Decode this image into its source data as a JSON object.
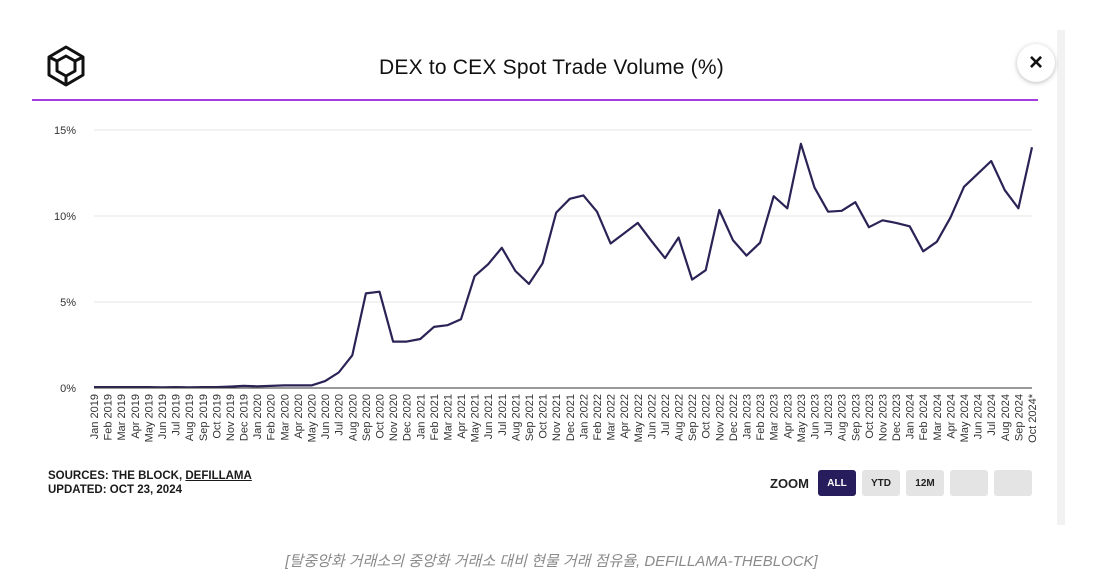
{
  "title": "DEX to CEX Spot Trade Volume (%)",
  "close_icon": "×",
  "colors": {
    "accent": "#a23be0",
    "line": "#2b2356",
    "zoom_active": "#271d5c"
  },
  "sources": {
    "label": "SOURCES: THE BLOCK, ",
    "link": "DEFILLAMA",
    "updated": "UPDATED: OCT 23, 2024"
  },
  "zoom": {
    "label": "ZOOM",
    "buttons": [
      {
        "label": "ALL",
        "active": true
      },
      {
        "label": "YTD",
        "active": false
      },
      {
        "label": "12M",
        "active": false
      }
    ]
  },
  "caption": "[탈중앙화 거래소의 중앙화 거래소 대비 현물 거래 점유율, DEFILLAMA-THEBLOCK]",
  "chart_data": {
    "type": "line",
    "title": "DEX to CEX Spot Trade Volume (%)",
    "ylim": [
      0,
      15
    ],
    "yticks": [
      0,
      5,
      10,
      15
    ],
    "ytick_labels": [
      "0%",
      "5%",
      "10%",
      "15%"
    ],
    "grid": true,
    "legend": "none",
    "categories": [
      "Jan 2019",
      "Feb 2019",
      "Mar 2019",
      "Apr 2019",
      "May 2019",
      "Jun 2019",
      "Jul 2019",
      "Aug 2019",
      "Sep 2019",
      "Oct 2019",
      "Nov 2019",
      "Dec 2019",
      "Jan 2020",
      "Feb 2020",
      "Mar 2020",
      "Apr 2020",
      "May 2020",
      "Jun 2020",
      "Jul 2020",
      "Aug 2020",
      "Sep 2020",
      "Oct 2020",
      "Nov 2020",
      "Dec 2020",
      "Jan 2021",
      "Feb 2021",
      "Mar 2021",
      "Apr 2021",
      "May 2021",
      "Jun 2021",
      "Jul 2021",
      "Aug 2021",
      "Sep 2021",
      "Oct 2021",
      "Nov 2021",
      "Dec 2021",
      "Jan 2022",
      "Feb 2022",
      "Mar 2022",
      "Apr 2022",
      "May 2022",
      "Jun 2022",
      "Jul 2022",
      "Aug 2022",
      "Sep 2022",
      "Oct 2022",
      "Nov 2022",
      "Dec 2022",
      "Jan 2023",
      "Feb 2023",
      "Mar 2023",
      "Apr 2023",
      "May 2023",
      "Jun 2023",
      "Jul 2023",
      "Aug 2023",
      "Sep 2023",
      "Oct 2023",
      "Nov 2023",
      "Dec 2023",
      "Jan 2024",
      "Feb 2024",
      "Mar 2024",
      "Apr 2024",
      "May 2024",
      "Jun 2024",
      "Jul 2024",
      "Aug 2024",
      "Sep 2024",
      "Oct 2024*"
    ],
    "values": [
      0.05,
      0.05,
      0.05,
      0.05,
      0.05,
      0.04,
      0.05,
      0.04,
      0.05,
      0.05,
      0.08,
      0.12,
      0.1,
      0.12,
      0.15,
      0.15,
      0.15,
      0.4,
      0.9,
      1.9,
      5.5,
      5.6,
      2.7,
      2.7,
      2.85,
      3.55,
      3.65,
      4.0,
      6.5,
      7.2,
      8.15,
      6.8,
      6.05,
      7.25,
      10.2,
      11.0,
      11.2,
      10.25,
      8.4,
      9.0,
      9.6,
      8.55,
      7.55,
      8.75,
      6.3,
      6.85,
      10.35,
      8.6,
      7.7,
      8.45,
      11.15,
      10.45,
      14.2,
      11.65,
      10.25,
      10.3,
      10.8,
      9.35,
      9.75,
      9.6,
      9.4,
      7.95,
      8.5,
      9.9,
      11.7,
      12.45,
      13.2,
      11.5,
      10.45,
      14.0
    ]
  }
}
